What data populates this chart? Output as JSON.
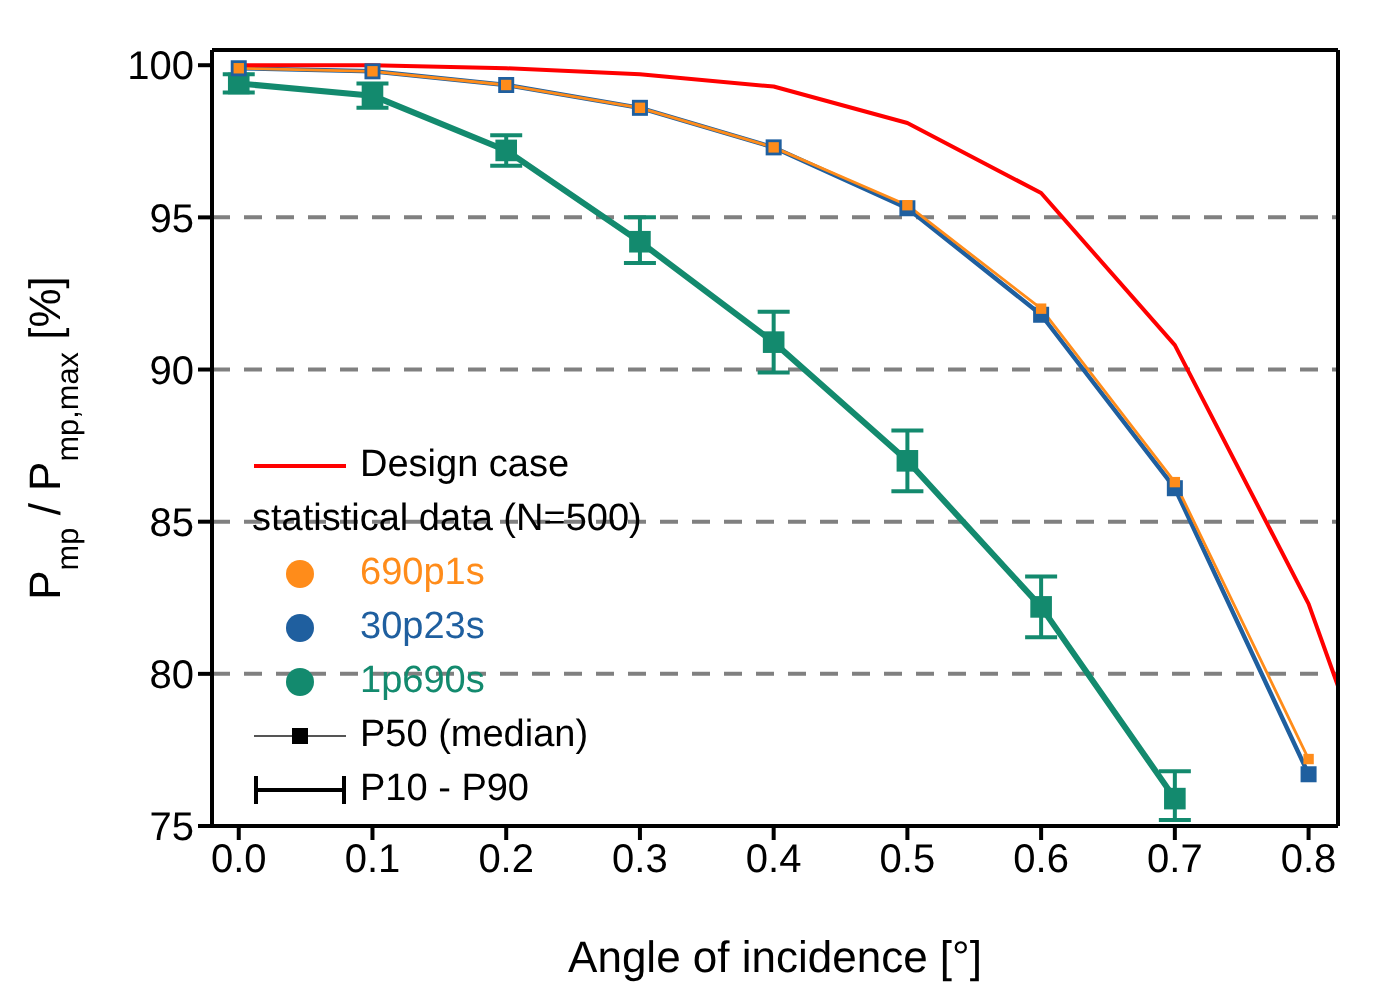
{
  "chart_data": {
    "type": "line",
    "xlabel": "Angle of incidence [°]",
    "ylabel": "P$_{mp}$ / P$_{mp,max}$ [%]",
    "xlim": [
      -0.02,
      0.822
    ],
    "xticks": [
      {
        "value": 0,
        "label": "0.0"
      },
      {
        "value": 0.1,
        "label": "0.1"
      },
      {
        "value": 0.2,
        "label": "0.2"
      },
      {
        "value": 0.3,
        "label": "0.3"
      },
      {
        "value": 0.4,
        "label": "0.4"
      },
      {
        "value": 0.5,
        "label": "0.5"
      },
      {
        "value": 0.6,
        "label": "0.6"
      },
      {
        "value": 0.7,
        "label": "0.7"
      },
      {
        "value": 0.8,
        "label": "0.8"
      }
    ],
    "ylim": [
      75,
      100.5
    ],
    "yticks": [
      75,
      80,
      85,
      90,
      95,
      100
    ],
    "series": [
      {
        "name": "Design case",
        "color": "#ff0000",
        "marker": "none",
        "x": [
          0,
          0.1,
          0.2,
          0.3,
          0.4,
          0.5,
          0.6,
          0.7,
          0.8,
          0.822
        ],
        "values": [
          100,
          100,
          99.9,
          99.7,
          99.3,
          98.1,
          95.8,
          90.8,
          82.3,
          79.6
        ]
      },
      {
        "name": "690p1s",
        "color": "#ff8c1a",
        "marker": "square",
        "x": [
          0,
          0.1,
          0.2,
          0.3,
          0.4,
          0.5,
          0.6,
          0.7,
          0.8
        ],
        "values": [
          99.9,
          99.8,
          99.35,
          98.6,
          97.3,
          95.4,
          92.0,
          86.3,
          77.2
        ]
      },
      {
        "name": "30p23s",
        "color": "#1f5f9f",
        "marker": "square",
        "x": [
          0,
          0.1,
          0.2,
          0.3,
          0.4,
          0.5,
          0.6,
          0.7,
          0.8
        ],
        "values": [
          99.9,
          99.8,
          99.35,
          98.6,
          97.3,
          95.3,
          91.8,
          86.1,
          76.7
        ]
      },
      {
        "name": "1p690s",
        "color": "#138a6e",
        "marker": "square",
        "x": [
          0,
          0.1,
          0.2,
          0.3,
          0.4,
          0.5,
          0.6,
          0.7
        ],
        "values": [
          99.4,
          99.0,
          97.2,
          94.2,
          90.9,
          87.0,
          82.2,
          75.9
        ],
        "errors": [
          [
            99.1,
            99.7
          ],
          [
            98.6,
            99.4
          ],
          [
            96.7,
            97.7
          ],
          [
            93.5,
            95.0
          ],
          [
            89.9,
            91.9
          ],
          [
            86.0,
            88.0
          ],
          [
            81.2,
            83.2
          ],
          [
            75.2,
            76.8
          ]
        ]
      }
    ],
    "ref_lines": [
      {
        "axis": "y",
        "value": 95,
        "color": "#808080",
        "line_style": "dashed"
      },
      {
        "axis": "y",
        "value": 90,
        "color": "#808080",
        "line_style": "dashed"
      },
      {
        "axis": "y",
        "value": 85,
        "color": "#808080",
        "line_style": "dashed"
      },
      {
        "axis": "y",
        "value": 80,
        "color": "#808080",
        "line_style": "dashed"
      }
    ],
    "annotations": [
      "statistical data (N=500)",
      "P50 (median)",
      "P10 - P90"
    ],
    "legend": "bottom left"
  }
}
